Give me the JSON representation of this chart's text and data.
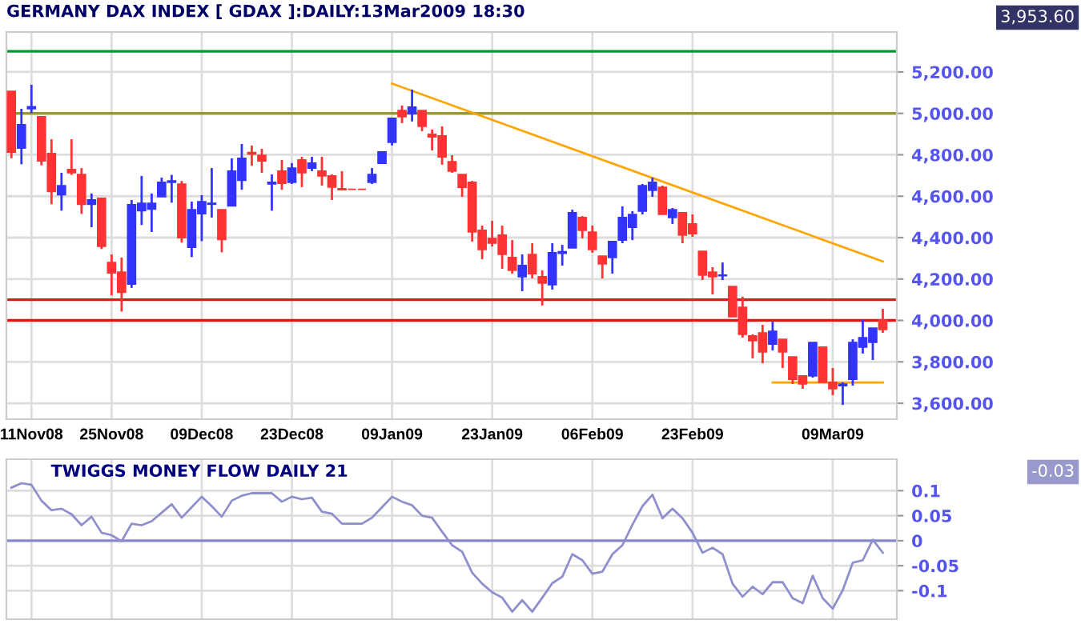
{
  "chart_data": [
    {
      "type": "candlestick",
      "title": "GERMANY DAX INDEX [ GDAX ]:DAILY:13Mar2009 18:30",
      "categories": [
        null,
        null,
        "11Nov08",
        null,
        null,
        null,
        null,
        null,
        null,
        null,
        "25Nov08",
        null,
        null,
        null,
        null,
        null,
        null,
        null,
        null,
        "09Dec08",
        null,
        null,
        null,
        null,
        null,
        null,
        null,
        null,
        "23Dec08",
        null,
        null,
        null,
        null,
        null,
        null,
        null,
        null,
        null,
        "09Jan09",
        null,
        null,
        null,
        null,
        null,
        null,
        null,
        null,
        null,
        "23Jan09",
        null,
        null,
        null,
        null,
        null,
        null,
        null,
        null,
        null,
        "06Feb09",
        null,
        null,
        null,
        null,
        null,
        null,
        null,
        null,
        null,
        "23Feb09",
        null,
        null,
        null,
        null,
        null,
        null,
        null,
        null,
        null,
        null,
        null,
        null,
        null,
        "09Mar09",
        null,
        null,
        null,
        null,
        null
      ],
      "ohlc": [
        [
          5107,
          5107,
          4783,
          4813
        ],
        [
          4832,
          5022,
          4754,
          4945
        ],
        [
          5022,
          5138,
          5002,
          5032
        ],
        [
          4984,
          4984,
          4749,
          4770
        ],
        [
          4806,
          4875,
          4561,
          4623
        ],
        [
          4607,
          4713,
          4530,
          4651
        ],
        [
          4729,
          4875,
          4703,
          4713
        ],
        [
          4705,
          4736,
          4515,
          4561
        ],
        [
          4561,
          4613,
          4450,
          4582
        ],
        [
          4590,
          4590,
          4345,
          4358
        ],
        [
          4280,
          4319,
          4121,
          4229
        ],
        [
          4234,
          4304,
          4043,
          4136
        ],
        [
          4175,
          4582,
          4157,
          4559
        ],
        [
          4530,
          4698,
          4461,
          4566
        ],
        [
          4538,
          4613,
          4427,
          4566
        ],
        [
          4597,
          4690,
          4597,
          4667
        ],
        [
          4667,
          4703,
          4569,
          4674
        ],
        [
          4659,
          4674,
          4376,
          4399
        ],
        [
          4353,
          4574,
          4306,
          4535
        ],
        [
          4515,
          4605,
          4383,
          4574
        ],
        [
          4561,
          4736,
          4497,
          4566
        ],
        [
          4535,
          4535,
          4329,
          4391
        ],
        [
          4553,
          4783,
          4553,
          4721
        ],
        [
          4677,
          4852,
          4631,
          4783
        ],
        [
          4811,
          4845,
          4747,
          4803
        ],
        [
          4798,
          4829,
          4713,
          4770
        ],
        [
          4659,
          4705,
          4530,
          4667
        ],
        [
          4721,
          4775,
          4631,
          4662
        ],
        [
          4667,
          4760,
          4659,
          4736
        ],
        [
          4775,
          4790,
          4644,
          4713
        ],
        [
          4736,
          4790,
          4721,
          4760
        ],
        [
          4721,
          4790,
          4651,
          4698
        ],
        [
          4698,
          4705,
          4582,
          4644
        ],
        [
          4636,
          4721,
          4631,
          4631
        ],
        [
          4633,
          4633,
          4633,
          4633
        ],
        [
          4633,
          4633,
          4633,
          4633
        ],
        [
          4667,
          4736,
          4659,
          4705
        ],
        [
          4759,
          4814,
          4759,
          4814
        ],
        [
          4860,
          4976,
          4845,
          4976
        ],
        [
          5014,
          5038,
          4953,
          4984
        ],
        [
          4999,
          5115,
          4961,
          5030
        ],
        [
          5014,
          5014,
          4914,
          4937
        ],
        [
          4899,
          4922,
          4821,
          4886
        ],
        [
          4891,
          4937,
          4752,
          4790
        ],
        [
          4767,
          4798,
          4713,
          4721
        ],
        [
          4705,
          4705,
          4597,
          4643
        ],
        [
          4667,
          4674,
          4381,
          4427
        ],
        [
          4435,
          4458,
          4296,
          4342
        ],
        [
          4396,
          4481,
          4357,
          4373
        ],
        [
          4412,
          4458,
          4249,
          4319
        ],
        [
          4304,
          4388,
          4226,
          4242
        ],
        [
          4211,
          4319,
          4141,
          4265
        ],
        [
          4319,
          4373,
          4203,
          4226
        ],
        [
          4211,
          4242,
          4072,
          4180
        ],
        [
          4172,
          4373,
          4149,
          4327
        ],
        [
          4324,
          4365,
          4265,
          4332
        ],
        [
          4350,
          4535,
          4350,
          4520
        ],
        [
          4497,
          4504,
          4396,
          4435
        ],
        [
          4427,
          4458,
          4327,
          4342
        ],
        [
          4311,
          4311,
          4203,
          4273
        ],
        [
          4304,
          4381,
          4226,
          4381
        ],
        [
          4388,
          4551,
          4373,
          4497
        ],
        [
          4450,
          4528,
          4388,
          4512
        ],
        [
          4528,
          4659,
          4512,
          4651
        ],
        [
          4628,
          4690,
          4597,
          4667
        ],
        [
          4643,
          4651,
          4512,
          4512
        ],
        [
          4497,
          4543,
          4466,
          4535
        ],
        [
          4520,
          4520,
          4373,
          4412
        ],
        [
          4466,
          4512,
          4404,
          4419
        ],
        [
          4334,
          4334,
          4195,
          4219
        ],
        [
          4234,
          4257,
          4126,
          4211
        ],
        [
          4216,
          4280,
          4195,
          4219
        ],
        [
          4164,
          4164,
          4018,
          4018
        ],
        [
          4064,
          4115,
          3917,
          3933
        ],
        [
          3925,
          3933,
          3817,
          3902
        ],
        [
          3940,
          3979,
          3793,
          3848
        ],
        [
          3886,
          3994,
          3855,
          3948
        ],
        [
          3909,
          3909,
          3770,
          3848
        ],
        [
          3824,
          3824,
          3693,
          3716
        ],
        [
          3732,
          3732,
          3670,
          3693
        ],
        [
          3732,
          3894,
          3724,
          3894
        ],
        [
          3871,
          3871,
          3701,
          3701
        ],
        [
          3701,
          3770,
          3639,
          3670
        ],
        [
          3685,
          3701,
          3592,
          3693
        ],
        [
          3716,
          3909,
          3685,
          3894
        ],
        [
          3871,
          4002,
          3840,
          3917
        ],
        [
          3894,
          3963,
          3809,
          3963
        ],
        [
          4002,
          4056,
          3940,
          3956
        ]
      ],
      "colors": [
        "#ff3333",
        "#3333ff",
        "#3333ff",
        "#ff3333",
        "#ff3333",
        "#3333ff",
        "#ff3333",
        "#ff3333",
        "#3333ff",
        "#ff3333",
        "#ff3333",
        "#ff3333",
        "#3333ff",
        "#3333ff",
        "#3333ff",
        "#3333ff",
        "#3333ff",
        "#ff3333",
        "#3333ff",
        "#3333ff",
        "#3333ff",
        "#ff3333",
        "#3333ff",
        "#3333ff",
        "#ff3333",
        "#ff3333",
        "#3333ff",
        "#ff3333",
        "#3333ff",
        "#ff3333",
        "#3333ff",
        "#ff3333",
        "#ff3333",
        "#ff3333",
        "#ff3333",
        "#ff3333",
        "#3333ff",
        "#3333ff",
        "#3333ff",
        "#ff3333",
        "#3333ff",
        "#ff3333",
        "#ff3333",
        "#ff3333",
        "#ff3333",
        "#ff3333",
        "#ff3333",
        "#ff3333",
        "#ff3333",
        "#ff3333",
        "#ff3333",
        "#3333ff",
        "#ff3333",
        "#ff3333",
        "#3333ff",
        "#3333ff",
        "#3333ff",
        "#ff3333",
        "#ff3333",
        "#ff3333",
        "#3333ff",
        "#3333ff",
        "#3333ff",
        "#3333ff",
        "#3333ff",
        "#ff3333",
        "#3333ff",
        "#ff3333",
        "#ff3333",
        "#ff3333",
        "#ff3333",
        "#3333ff",
        "#ff3333",
        "#ff3333",
        "#ff3333",
        "#ff3333",
        "#3333ff",
        "#ff3333",
        "#ff3333",
        "#ff3333",
        "#3333ff",
        "#ff3333",
        "#ff3333",
        "#3333ff",
        "#3333ff",
        "#3333ff",
        "#3333ff",
        "#ff3333"
      ],
      "series": [
        {
          "type": "line",
          "color": "#ffa500",
          "values": [
            null,
            null,
            null,
            null,
            null,
            null,
            null,
            null,
            null,
            null,
            null,
            null,
            null,
            null,
            null,
            null,
            null,
            null,
            null,
            null,
            null,
            null,
            null,
            null,
            null,
            null,
            null,
            null,
            null,
            null,
            null,
            null,
            null,
            null,
            null,
            null,
            null,
            null,
            5144,
            null,
            null,
            null,
            null,
            null,
            null,
            null,
            null,
            null,
            null,
            null,
            null,
            null,
            null,
            null,
            null,
            null,
            null,
            null,
            null,
            null,
            null,
            null,
            null,
            null,
            null,
            null,
            null,
            null,
            null,
            null,
            null,
            null,
            null,
            null,
            null,
            null,
            null,
            null,
            null,
            null,
            null,
            null,
            null,
            null,
            null,
            null,
            null,
            4285
          ]
        },
        {
          "type": "line",
          "color": "#ffa500",
          "values": [
            null,
            null,
            null,
            null,
            null,
            null,
            null,
            null,
            null,
            null,
            null,
            null,
            null,
            null,
            null,
            null,
            null,
            null,
            null,
            null,
            null,
            null,
            null,
            null,
            null,
            null,
            null,
            null,
            null,
            null,
            null,
            null,
            null,
            null,
            null,
            null,
            null,
            null,
            null,
            null,
            null,
            null,
            null,
            null,
            null,
            null,
            null,
            null,
            null,
            null,
            null,
            null,
            null,
            null,
            null,
            null,
            null,
            null,
            null,
            null,
            null,
            null,
            null,
            null,
            null,
            null,
            null,
            null,
            null,
            null,
            null,
            null,
            null,
            null,
            null,
            null,
            3700,
            null,
            null,
            null,
            null,
            null,
            null,
            null,
            null,
            null,
            null,
            3700
          ]
        }
      ],
      "ref_lines": [
        {
          "axis": "y",
          "value": 5300,
          "color": "#009933"
        },
        {
          "axis": "y",
          "value": 5000,
          "color": "#999933"
        },
        {
          "axis": "y",
          "value": 4100,
          "color": "#ee1111"
        },
        {
          "axis": "y",
          "value": 4000,
          "color": "#ee1111"
        }
      ],
      "ylim": [
        3523,
        5393
      ],
      "yticks": [
        {
          "value": 5200,
          "label": "5,200.00"
        },
        {
          "value": 5000,
          "label": "5,000.00"
        },
        {
          "value": 4800,
          "label": "4,800.00"
        },
        {
          "value": 4600,
          "label": "4,600.00"
        },
        {
          "value": 4400,
          "label": "4,400.00"
        },
        {
          "value": 4200,
          "label": "4,200.00"
        },
        {
          "value": 4000,
          "label": "4,000.00"
        },
        {
          "value": 3800,
          "label": "3,800.00"
        },
        {
          "value": 3600,
          "label": "3,600.00"
        }
      ],
      "grid": true,
      "annotations": [
        "3,953.60"
      ]
    },
    {
      "type": "line",
      "title": "TWIGGS MONEY FLOW DAILY 21",
      "categories": [
        null,
        null,
        null,
        null,
        null,
        null,
        null,
        null,
        null,
        null,
        null,
        null,
        null,
        null,
        null,
        null,
        null,
        null,
        null,
        null,
        null,
        null,
        null,
        null,
        null,
        null,
        null,
        null,
        null,
        null,
        null,
        null,
        null,
        null,
        null,
        null,
        null,
        null,
        null,
        null,
        null,
        null,
        null,
        null,
        null,
        null,
        null,
        null,
        null,
        null,
        null,
        null,
        null,
        null,
        null,
        null,
        null,
        null,
        null,
        null,
        null,
        null,
        null,
        null,
        null,
        null,
        null,
        null,
        null,
        null,
        null,
        null,
        null,
        null,
        null,
        null,
        null,
        null,
        null,
        null,
        null,
        null,
        null,
        null,
        null,
        null,
        null,
        null
      ],
      "series": [
        {
          "color": "#8f8fcc",
          "values": [
            0.106,
            0.115,
            0.112,
            0.08,
            0.061,
            0.064,
            0.053,
            0.031,
            0.048,
            0.016,
            0.011,
            -0.001,
            0.034,
            0.031,
            0.039,
            0.056,
            0.073,
            0.046,
            0.067,
            0.088,
            0.069,
            0.048,
            0.08,
            0.09,
            0.095,
            0.095,
            0.095,
            0.078,
            0.088,
            0.083,
            0.086,
            0.058,
            0.054,
            0.034,
            0.034,
            0.034,
            0.046,
            0.067,
            0.088,
            0.078,
            0.071,
            0.05,
            0.046,
            0.018,
            -0.009,
            -0.022,
            -0.064,
            -0.086,
            -0.103,
            -0.114,
            -0.142,
            -0.119,
            -0.142,
            -0.114,
            -0.085,
            -0.072,
            -0.027,
            -0.039,
            -0.066,
            -0.062,
            -0.027,
            -0.009,
            0.032,
            0.069,
            0.092,
            0.045,
            0.064,
            0.045,
            0.016,
            -0.024,
            -0.014,
            -0.027,
            -0.086,
            -0.112,
            -0.092,
            -0.107,
            -0.083,
            -0.083,
            -0.115,
            -0.125,
            -0.07,
            -0.115,
            -0.136,
            -0.099,
            -0.044,
            -0.039,
            0.002,
            -0.024
          ]
        }
      ],
      "ref_lines": [
        {
          "axis": "y",
          "value": 0,
          "color": "#8888cc"
        }
      ],
      "ylim": [
        -0.157,
        0.163
      ],
      "yticks": [
        0.1,
        0.05,
        0,
        {
          "value": -0.05,
          "label": "-0.05"
        },
        {
          "value": -0.1,
          "label": "-0.1"
        }
      ],
      "grid": true,
      "tick_labels": "y",
      "annotations": [
        "-0.03"
      ]
    }
  ]
}
